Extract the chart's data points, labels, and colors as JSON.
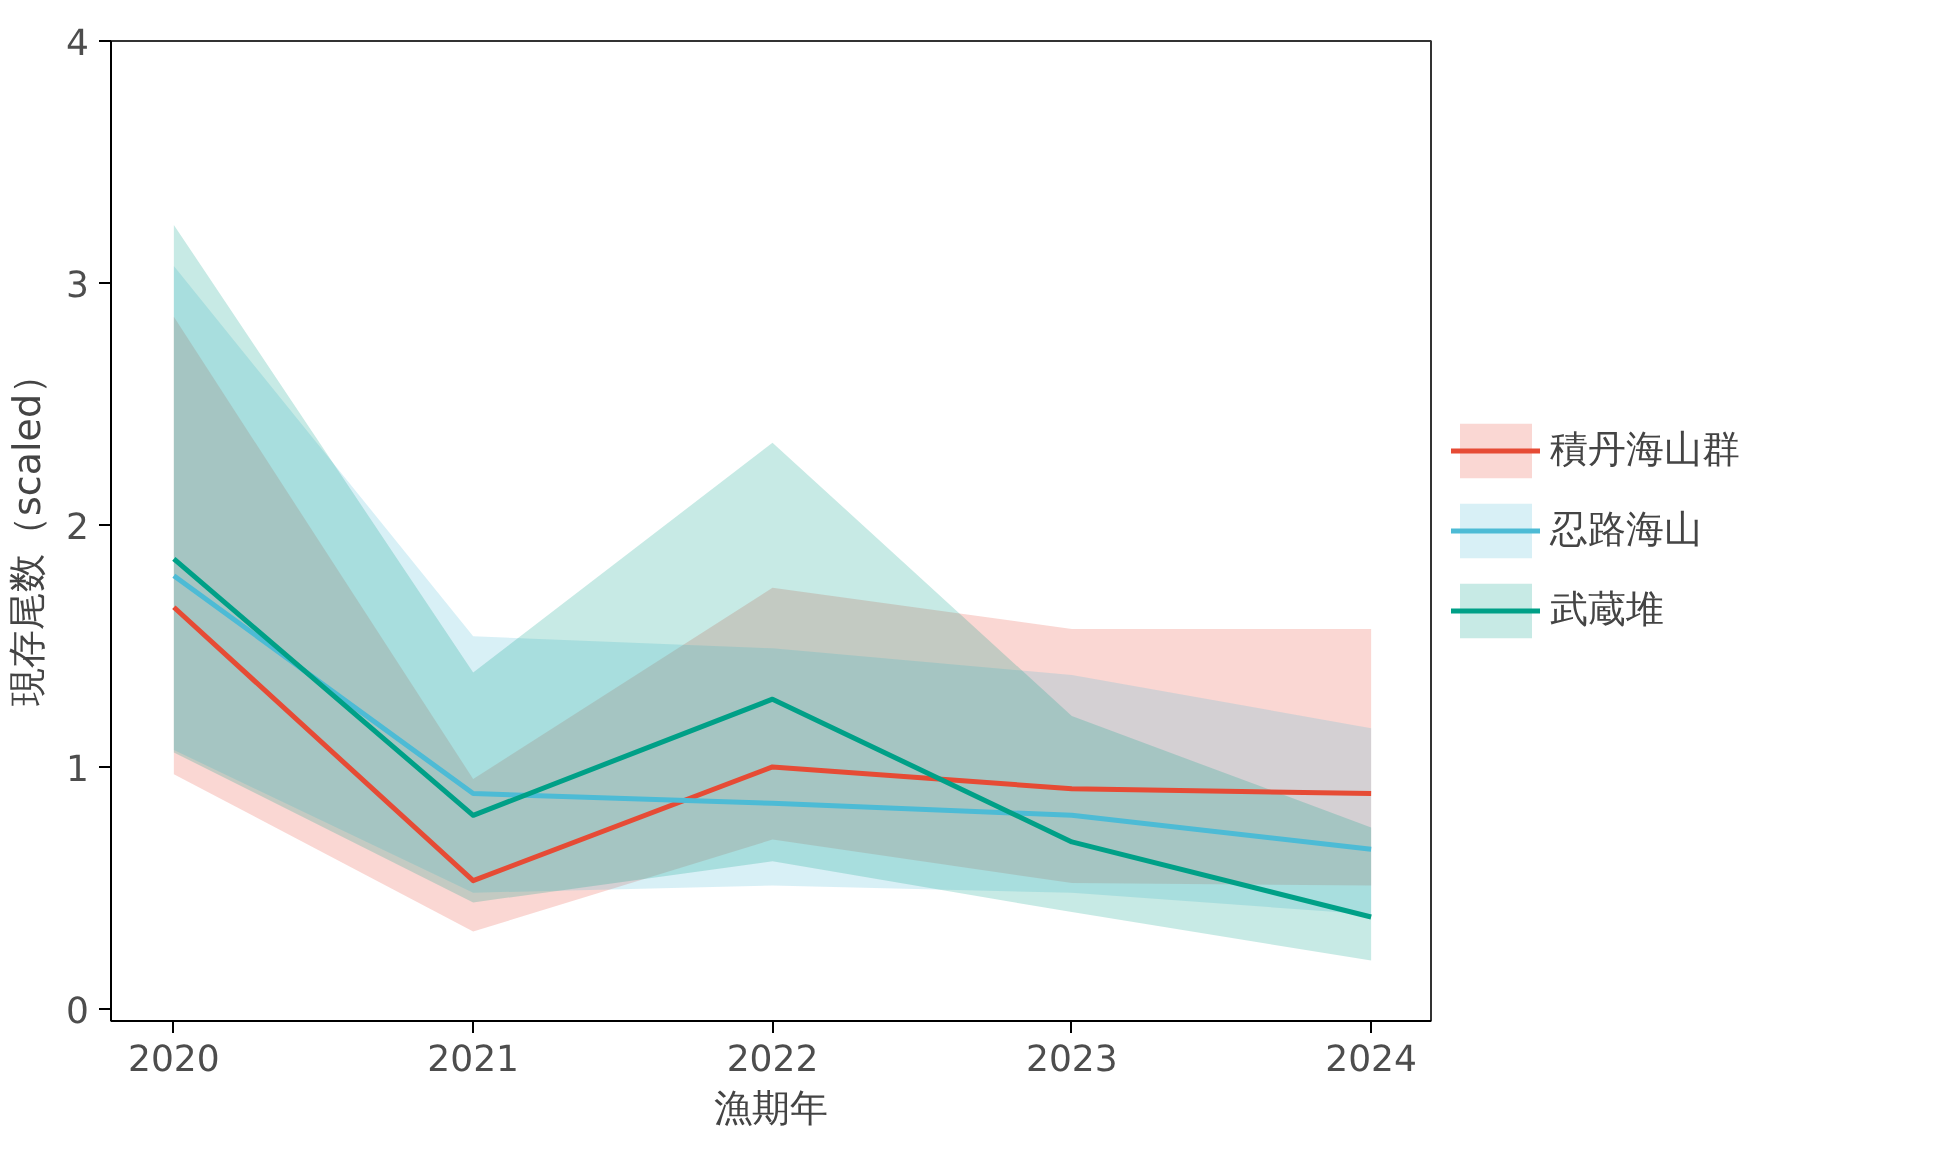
{
  "chart_data": {
    "type": "line",
    "xlabel": "漁期年",
    "ylabel": "現存尾数（scaled）",
    "x": [
      2020,
      2021,
      2022,
      2023,
      2024
    ],
    "xlim": [
      2019.79,
      2024.2
    ],
    "xticks": [
      2020,
      2021,
      2022,
      2023,
      2024
    ],
    "ylim": [
      -0.05,
      4.0
    ],
    "yticks": [
      0,
      1,
      2,
      3,
      4
    ],
    "grid": false,
    "legend": "right",
    "series": [
      {
        "name": "積丹海山群",
        "color": "#e64b35",
        "values": [
          1.66,
          0.53,
          1.0,
          0.91,
          0.89
        ],
        "lower": [
          0.97,
          0.32,
          0.7,
          0.52,
          0.51
        ],
        "upper": [
          2.86,
          0.95,
          1.74,
          1.57,
          1.57
        ]
      },
      {
        "name": "忍路海山",
        "color": "#4dbbd5",
        "values": [
          1.79,
          0.89,
          0.85,
          0.8,
          0.66
        ],
        "lower": [
          1.07,
          0.48,
          0.51,
          0.48,
          0.39
        ],
        "upper": [
          3.07,
          1.54,
          1.49,
          1.38,
          1.16
        ]
      },
      {
        "name": "武蔵堆",
        "color": "#00a087",
        "values": [
          1.86,
          0.8,
          1.28,
          0.69,
          0.38
        ],
        "lower": [
          1.06,
          0.44,
          0.61,
          0.4,
          0.2
        ],
        "upper": [
          3.24,
          1.39,
          2.34,
          1.21,
          0.75
        ]
      }
    ]
  }
}
